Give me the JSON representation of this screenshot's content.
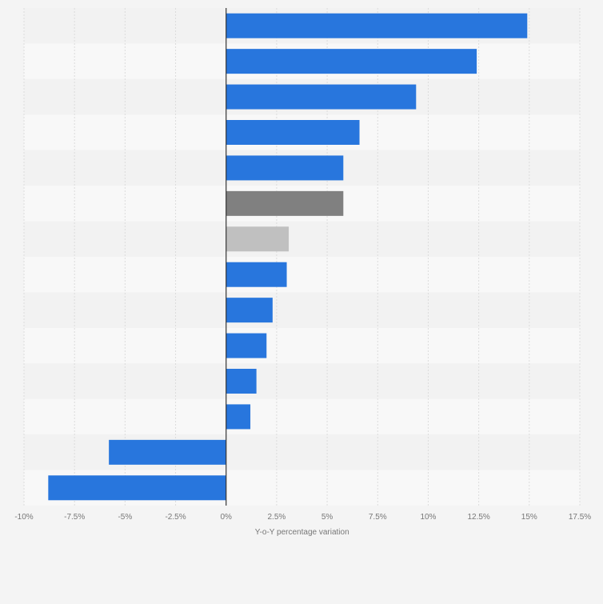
{
  "chart_data": {
    "type": "bar",
    "orientation": "horizontal",
    "title": "",
    "xlabel": "Y-o-Y percentage variation",
    "ylabel": "",
    "xlim": [
      -10,
      17.5
    ],
    "grid": true,
    "category_labels_visible": false,
    "ticks": [
      {
        "value": -10,
        "label": "-10%"
      },
      {
        "value": -7.5,
        "label": "-7.5%"
      },
      {
        "value": -5,
        "label": "-5%"
      },
      {
        "value": -2.5,
        "label": "-2.5%"
      },
      {
        "value": 0,
        "label": "0%"
      },
      {
        "value": 2.5,
        "label": "2.5%"
      },
      {
        "value": 5,
        "label": "5%"
      },
      {
        "value": 7.5,
        "label": "7.5%"
      },
      {
        "value": 10,
        "label": "10%"
      },
      {
        "value": 12.5,
        "label": "12.5%"
      },
      {
        "value": 15,
        "label": "15%"
      },
      {
        "value": 17.5,
        "label": "17.5%"
      }
    ],
    "bars": [
      {
        "value": 14.9,
        "color": "#2876dd"
      },
      {
        "value": 12.4,
        "color": "#2876dd"
      },
      {
        "value": 9.4,
        "color": "#2876dd"
      },
      {
        "value": 6.6,
        "color": "#2876dd"
      },
      {
        "value": 5.8,
        "color": "#2876dd"
      },
      {
        "value": 5.8,
        "color": "#808080"
      },
      {
        "value": 3.1,
        "color": "#c0c0c0"
      },
      {
        "value": 3.0,
        "color": "#2876dd"
      },
      {
        "value": 2.3,
        "color": "#2876dd"
      },
      {
        "value": 2.0,
        "color": "#2876dd"
      },
      {
        "value": 1.5,
        "color": "#2876dd"
      },
      {
        "value": 1.2,
        "color": "#2876dd"
      },
      {
        "value": -5.8,
        "color": "#2876dd"
      },
      {
        "value": -8.8,
        "color": "#2876dd"
      }
    ]
  },
  "colors": {
    "background": "#f4f4f4",
    "band_dark": "#f2f2f2",
    "band_light": "#f8f8f8",
    "grid": "#dcdcdc",
    "zero_line": "#333333",
    "tick_text": "#777777"
  }
}
